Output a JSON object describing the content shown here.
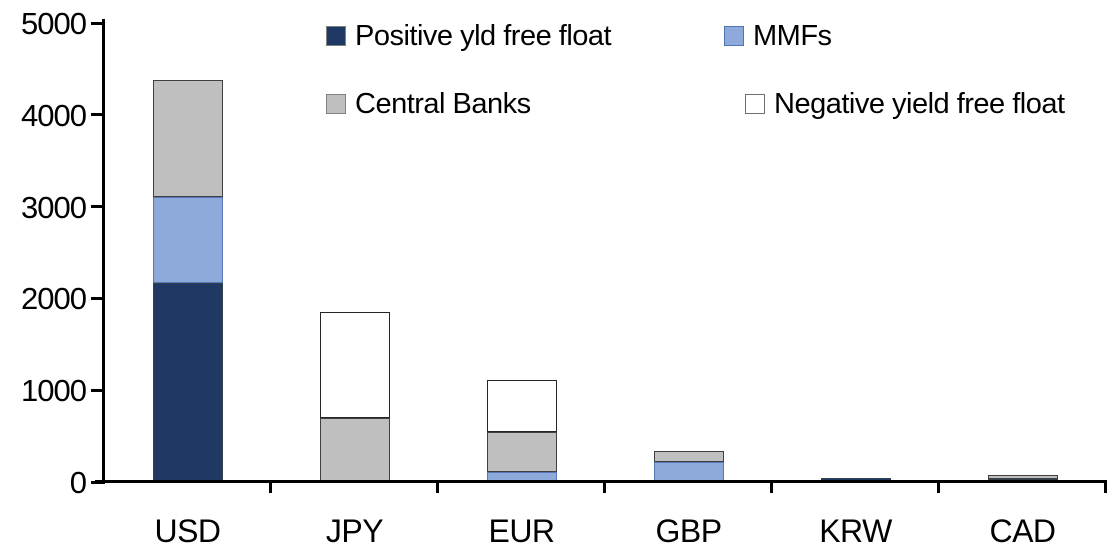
{
  "chart_data": {
    "type": "bar",
    "subtype": "stacked",
    "title": "",
    "xlabel": "",
    "ylabel": "",
    "categories": [
      "USD",
      "JPY",
      "EUR",
      "GBP",
      "KRW",
      "CAD"
    ],
    "series": [
      {
        "name": "Positive yld free float",
        "color": "#1F3864",
        "border_color": "#33404f",
        "legend_border_color": "#808080",
        "values": [
          2170,
          0,
          0,
          0,
          40,
          35
        ]
      },
      {
        "name": "MMFs",
        "color": "#8EAADB",
        "border_color": "#5577b5",
        "legend_border_color": "#4f74b3",
        "values": [
          930,
          0,
          110,
          220,
          0,
          0
        ]
      },
      {
        "name": "Central Banks",
        "color": "#BFBFBF",
        "border_color": "#404040",
        "legend_border_color": "#808080",
        "values": [
          1280,
          700,
          435,
          115,
          0,
          40
        ]
      },
      {
        "name": "Negative yield free float",
        "color": "#FFFFFF",
        "border_color": "#262626",
        "legend_border_color": "#6f6f6f",
        "values": [
          0,
          1150,
          570,
          0,
          0,
          0
        ]
      }
    ],
    "totals": [
      4380,
      1850,
      1115,
      335,
      40,
      75
    ],
    "ylim": [
      0,
      5000
    ],
    "yticks": [
      0,
      1000,
      2000,
      3000,
      4000,
      5000
    ],
    "ytick_labels": [
      "0",
      "1000",
      "2000",
      "3000",
      "4000",
      "5000"
    ],
    "grid": false,
    "legend_position": "top",
    "legend_rows": [
      [
        "Positive yld free float",
        "MMFs"
      ],
      [
        "Central Banks",
        "Negative yield free float"
      ]
    ],
    "axis_color": "#000000",
    "background_color": "#FFFFFF"
  }
}
